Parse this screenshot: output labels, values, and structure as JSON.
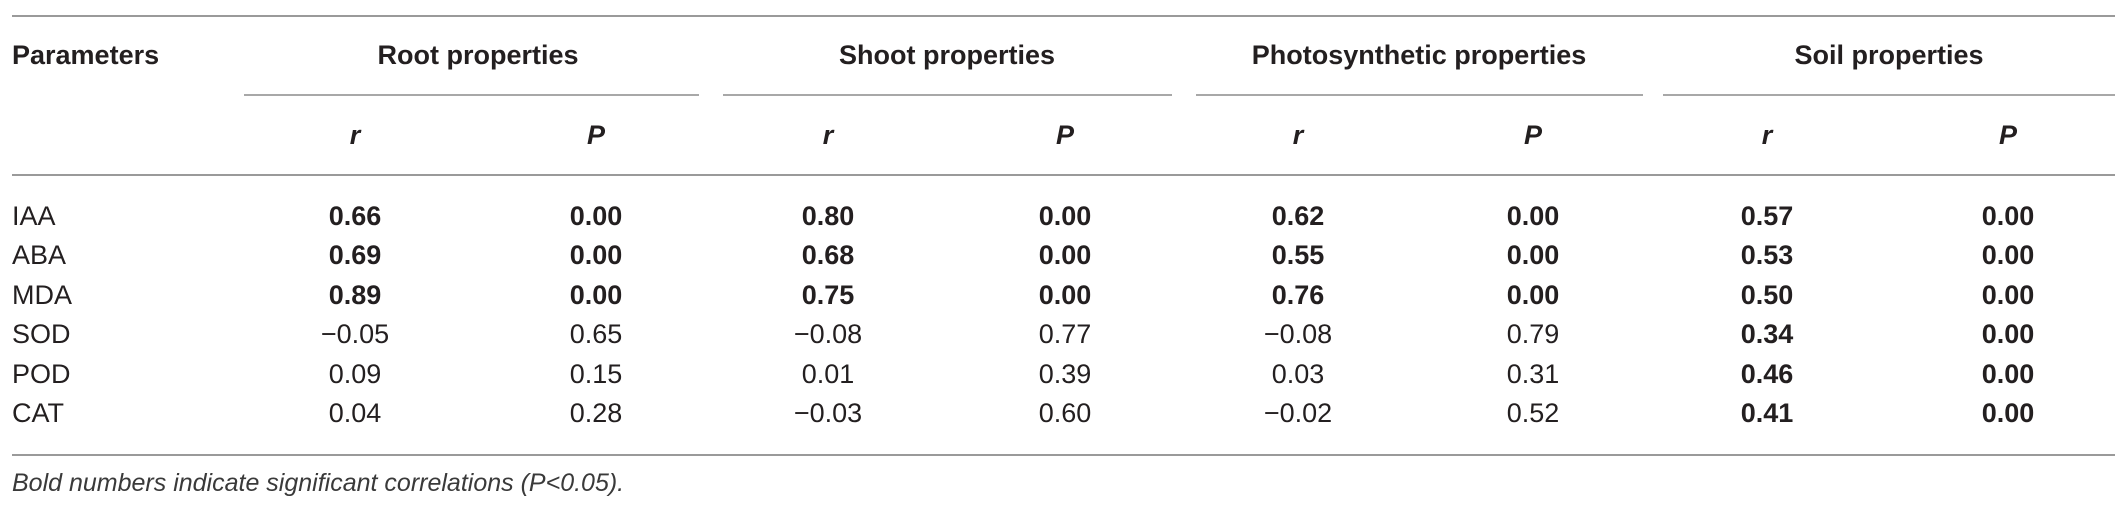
{
  "table": {
    "param_header": "Parameters",
    "groups": [
      "Root properties",
      "Shoot properties",
      "Photosynthetic properties",
      "Soil properties"
    ],
    "subheaders": [
      "r",
      "P"
    ],
    "rows": [
      {
        "label": "IAA",
        "values": [
          "0.66",
          "0.00",
          "0.80",
          "0.00",
          "0.62",
          "0.00",
          "0.57",
          "0.00"
        ],
        "bold": [
          true,
          true,
          true,
          true,
          true,
          true,
          true,
          true
        ]
      },
      {
        "label": "ABA",
        "values": [
          "0.69",
          "0.00",
          "0.68",
          "0.00",
          "0.55",
          "0.00",
          "0.53",
          "0.00"
        ],
        "bold": [
          true,
          true,
          true,
          true,
          true,
          true,
          true,
          true
        ]
      },
      {
        "label": "MDA",
        "values": [
          "0.89",
          "0.00",
          "0.75",
          "0.00",
          "0.76",
          "0.00",
          "0.50",
          "0.00"
        ],
        "bold": [
          true,
          true,
          true,
          true,
          true,
          true,
          true,
          true
        ]
      },
      {
        "label": "SOD",
        "values": [
          "−0.05",
          "0.65",
          "−0.08",
          "0.77",
          "−0.08",
          "0.79",
          "0.34",
          "0.00"
        ],
        "bold": [
          false,
          false,
          false,
          false,
          false,
          false,
          true,
          true
        ]
      },
      {
        "label": "POD",
        "values": [
          "0.09",
          "0.15",
          "0.01",
          "0.39",
          "0.03",
          "0.31",
          "0.46",
          "0.00"
        ],
        "bold": [
          false,
          false,
          false,
          false,
          false,
          false,
          true,
          true
        ]
      },
      {
        "label": "CAT",
        "values": [
          "0.04",
          "0.28",
          "−0.03",
          "0.60",
          "−0.02",
          "0.52",
          "0.41",
          "0.00"
        ],
        "bold": [
          false,
          false,
          false,
          false,
          false,
          false,
          true,
          true
        ]
      }
    ]
  },
  "footnote": "Bold numbers indicate significant correlations (P<0.05)."
}
